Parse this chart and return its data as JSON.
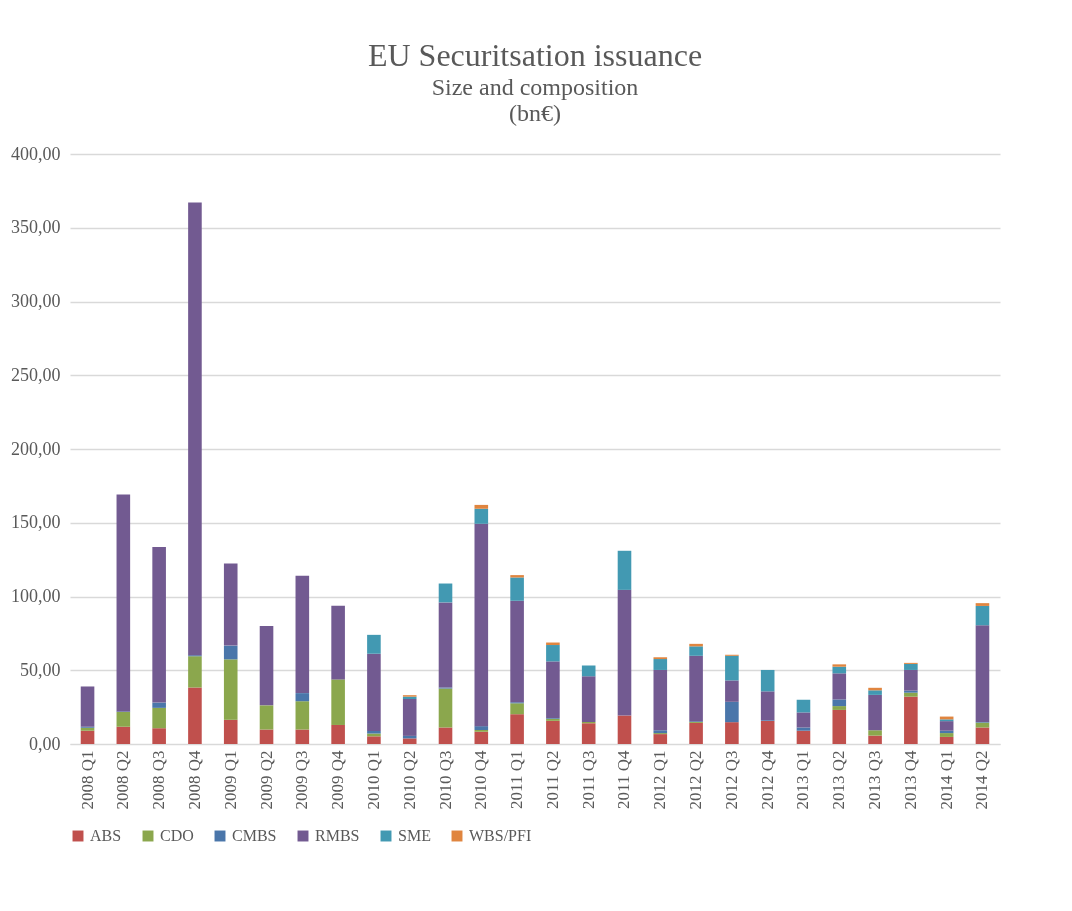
{
  "chart_data": {
    "type": "bar",
    "title": "EU Securitsation issuance",
    "subtitle": "Size and composition",
    "annotations": [
      "(bn€)"
    ],
    "categories": [
      "2008 Q1",
      "2008 Q2",
      "2008 Q3",
      "2008 Q4",
      "2009 Q1",
      "2009 Q2",
      "2009 Q3",
      "2009 Q4",
      "2010 Q1",
      "2010 Q2",
      "2010 Q3",
      "2010 Q4",
      "2011 Q1",
      "2011 Q2",
      "2011 Q3",
      "2011 Q4",
      "2012 Q1",
      "2012 Q2",
      "2012 Q3",
      "2012 Q4",
      "2013 Q1",
      "2013 Q2",
      "2013 Q3",
      "2013 Q4",
      "2014 Q1",
      "2014 Q2"
    ],
    "stacked": true,
    "series": [
      {
        "name": "ABS",
        "color": "#c0504d",
        "values": [
          9,
          11.7,
          10.7,
          38.3,
          16.4,
          9.8,
          9.8,
          12.9,
          5.2,
          3.8,
          11.2,
          8.3,
          20.2,
          15.7,
          14,
          19.3,
          6.7,
          14.3,
          14.8,
          15.7,
          9,
          23.1,
          5.7,
          32.1,
          4.8,
          11.2
        ]
      },
      {
        "name": "CDO",
        "color": "#8ba74d",
        "values": [
          2,
          10,
          13.8,
          21.2,
          41,
          16.4,
          19.2,
          30.9,
          1.9,
          0,
          26.4,
          1.2,
          7.4,
          1.4,
          1,
          0,
          0.7,
          0.7,
          0,
          0,
          0,
          2.6,
          3.6,
          2.7,
          2.6,
          3.3
        ]
      },
      {
        "name": "CMBS",
        "color": "#4a76aa",
        "values": [
          0.7,
          0.4,
          3.6,
          0.7,
          9.3,
          null,
          5.5,
          null,
          1.7,
          1.7,
          0.7,
          2.6,
          0.7,
          0.5,
          0,
          0,
          1.9,
          0.5,
          13.8,
          0.5,
          2.2,
          4.5,
          null,
          1.4,
          1.6,
          0.5
        ]
      },
      {
        "name": "RMBS",
        "color": "#725a91",
        "values": [
          27.3,
          147,
          105.5,
          307,
          55.7,
          53.8,
          79.5,
          50,
          52.4,
          25,
          57.7,
          137.2,
          68.8,
          38.4,
          31,
          85.2,
          40.9,
          44.3,
          14.5,
          19.5,
          10.2,
          17.7,
          24,
          14,
          6.5,
          65.5
        ]
      },
      {
        "name": "SME",
        "color": "#4299b2",
        "values": [
          0,
          0,
          0,
          0,
          0,
          0,
          0,
          0,
          12.8,
          1.6,
          12.8,
          10.2,
          15.8,
          11.1,
          7.3,
          26.5,
          7.4,
          6.4,
          16.7,
          14.5,
          8.6,
          4.5,
          3.1,
          4.1,
          1.2,
          13.1
        ]
      },
      {
        "name": "WBS/PFI",
        "color": "#e0853f",
        "values": [
          0,
          0,
          0,
          0,
          0,
          0,
          0,
          0,
          0,
          1,
          0,
          2.6,
          1.6,
          1.7,
          0,
          0,
          1.2,
          1.7,
          0.7,
          0,
          0,
          1.6,
          1.7,
          0.7,
          1.9,
          1.9
        ]
      }
    ],
    "ylim": [
      0,
      400
    ],
    "yticks": [
      {
        "value": 0,
        "label": "0,00"
      },
      {
        "value": 50,
        "label": "50,00"
      },
      {
        "value": 100,
        "label": "100,00"
      },
      {
        "value": 150,
        "label": "150,00"
      },
      {
        "value": 200,
        "label": "200,00"
      },
      {
        "value": 250,
        "label": "250,00"
      },
      {
        "value": 300,
        "label": "300,00"
      },
      {
        "value": 350,
        "label": "350,00"
      },
      {
        "value": 400,
        "label": "400,00"
      }
    ],
    "grid": "y",
    "legend": "bottom"
  }
}
